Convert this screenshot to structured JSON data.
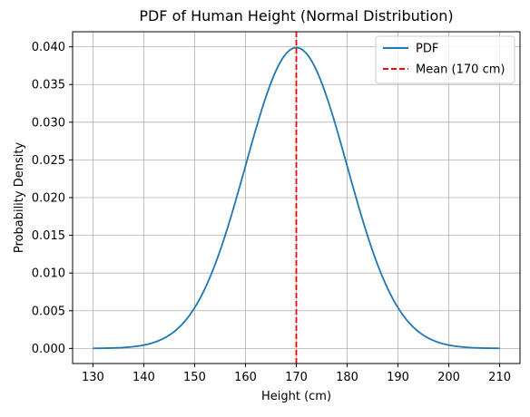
{
  "chart_data": {
    "type": "line",
    "title": "PDF of Human Height (Normal Distribution)",
    "xlabel": "Height (cm)",
    "ylabel": "Probability Density",
    "xlim": [
      126,
      214
    ],
    "ylim": [
      -0.002,
      0.042
    ],
    "x_ticks": [
      130,
      140,
      150,
      160,
      170,
      180,
      190,
      200,
      210
    ],
    "y_ticks": [
      0.0,
      0.005,
      0.01,
      0.015,
      0.02,
      0.025,
      0.03,
      0.035,
      0.04
    ],
    "x_tick_labels": [
      "130",
      "140",
      "150",
      "160",
      "170",
      "180",
      "190",
      "200",
      "210"
    ],
    "y_tick_labels": [
      "0.000",
      "0.005",
      "0.010",
      "0.015",
      "0.020",
      "0.025",
      "0.030",
      "0.035",
      "0.040"
    ],
    "grid": true,
    "legend_position": "top-right",
    "series": [
      {
        "name": "PDF",
        "color": "#1f77b4",
        "style": "solid",
        "x": [
          130,
          135,
          140,
          145,
          150,
          155,
          160,
          165,
          170,
          175,
          180,
          185,
          190,
          195,
          200,
          205,
          210
        ],
        "y": [
          0.0,
          0.0002,
          0.0004,
          0.0018,
          0.0054,
          0.013,
          0.0242,
          0.0352,
          0.0399,
          0.0352,
          0.0242,
          0.013,
          0.0054,
          0.0018,
          0.0004,
          0.0002,
          0.0
        ]
      },
      {
        "name": "Mean (170 cm)",
        "color": "#ff0000",
        "style": "dashed",
        "vline_x": 170
      }
    ]
  }
}
